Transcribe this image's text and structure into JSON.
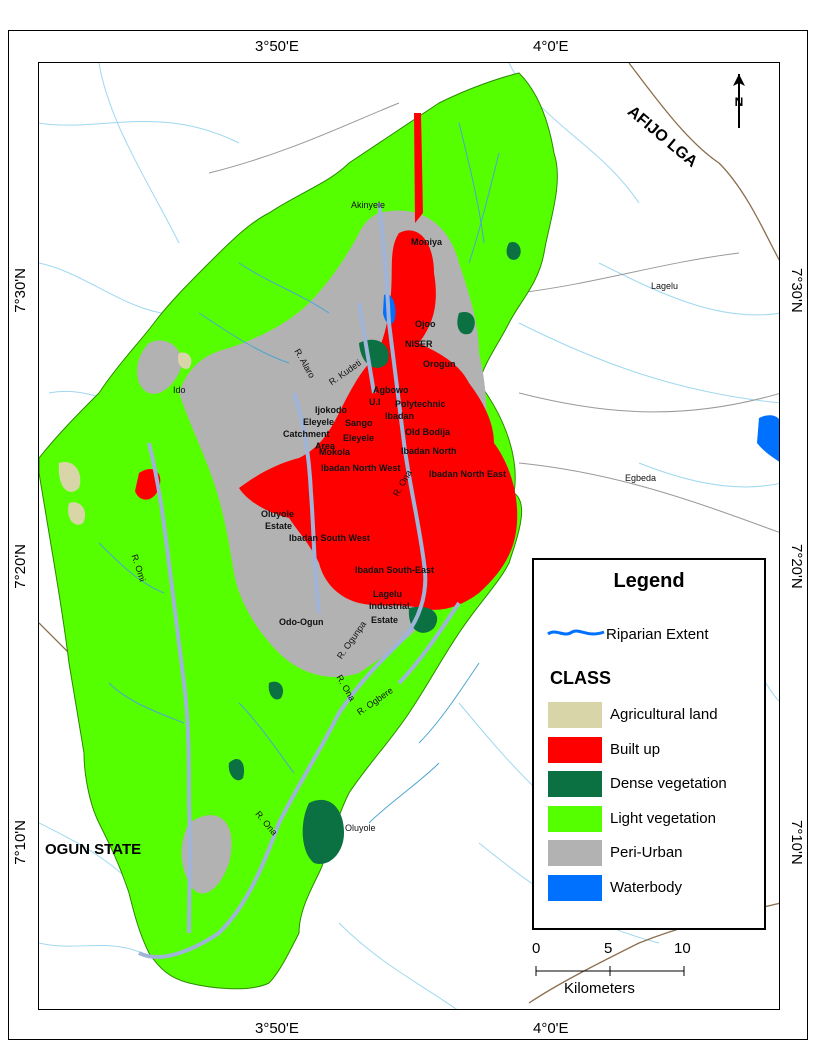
{
  "ticks": {
    "top_left": "3°50'E",
    "top_right": "4°0'E",
    "bottom_left": "3°50'E",
    "bottom_right": "4°0'E",
    "left_top": "7°30'N",
    "left_mid": "7°20'N",
    "left_bot": "7°10'N",
    "right_top": "7°30'N",
    "right_mid": "7°20'N",
    "right_bot": "7°10'N"
  },
  "regions": {
    "afijo": "AFIJO LGA",
    "ogun": "OGUN STATE",
    "lagelu": "Lagelu",
    "egbeda": "Egbeda"
  },
  "places": {
    "akinyele": "Akinyele",
    "moniya": "Moniya",
    "ojoo": "Ojoo",
    "niser": "NISER",
    "orogun": "Orogun",
    "agbowo": "Agbowo",
    "ui": "U.I",
    "polytechnic": "Polytechnic",
    "ibadan": "Ibadan",
    "old_bodija": "Old Bodija",
    "bodija_area": "Ibadan North",
    "ido": "Ido",
    "ijokodo": "Ijokodo",
    "sango": "Sango",
    "eleyele1": "Eleyele",
    "catchment": "Catchment",
    "area": "Area",
    "eleyele2": "Eleyele",
    "mokola": "Mokola",
    "ibadan_nw": "Ibadan North West",
    "ibadan_ne": "Ibadan North East",
    "oluyole_estate1": "Oluyole",
    "oluyole_estate2": "Estate",
    "ibadan_sw": "Ibadan South West",
    "ibadan_se": "Ibadan South-East",
    "lagelu_ind": "Lagelu",
    "industrial": "Industrial",
    "estate": "Estate",
    "odo_ogun": "Odo-Ogun",
    "oluyole": "Oluyole"
  },
  "rivers": {
    "omi": "R. Omi",
    "ona1": "R. Ona",
    "ona2": "R. Ona",
    "ogbere": "R. Ogbere",
    "ogunpa": "R. Ogunpa",
    "kudeti": "R. Kudeti",
    "alaro": "R. Alaro",
    "ona3": "R. Ona"
  },
  "legend": {
    "title": "Legend",
    "riparian": "Riparian Extent",
    "class_title": "CLASS",
    "classes": [
      {
        "label": "Agricultural land",
        "color": "#d8d6a8"
      },
      {
        "label": "Built up",
        "color": "#ff0000"
      },
      {
        "label": "Dense vegetation",
        "color": "#0b7042"
      },
      {
        "label": "Light vegetation",
        "color": "#55ff00"
      },
      {
        "label": "Peri-Urban",
        "color": "#b2b2b2"
      },
      {
        "label": "Waterbody",
        "color": "#0070ff"
      }
    ]
  },
  "scale": {
    "labels": [
      "0",
      "5",
      "10"
    ],
    "unit": "Kilometers"
  },
  "north": {
    "label": "N",
    "icon": "north-arrow-icon"
  }
}
